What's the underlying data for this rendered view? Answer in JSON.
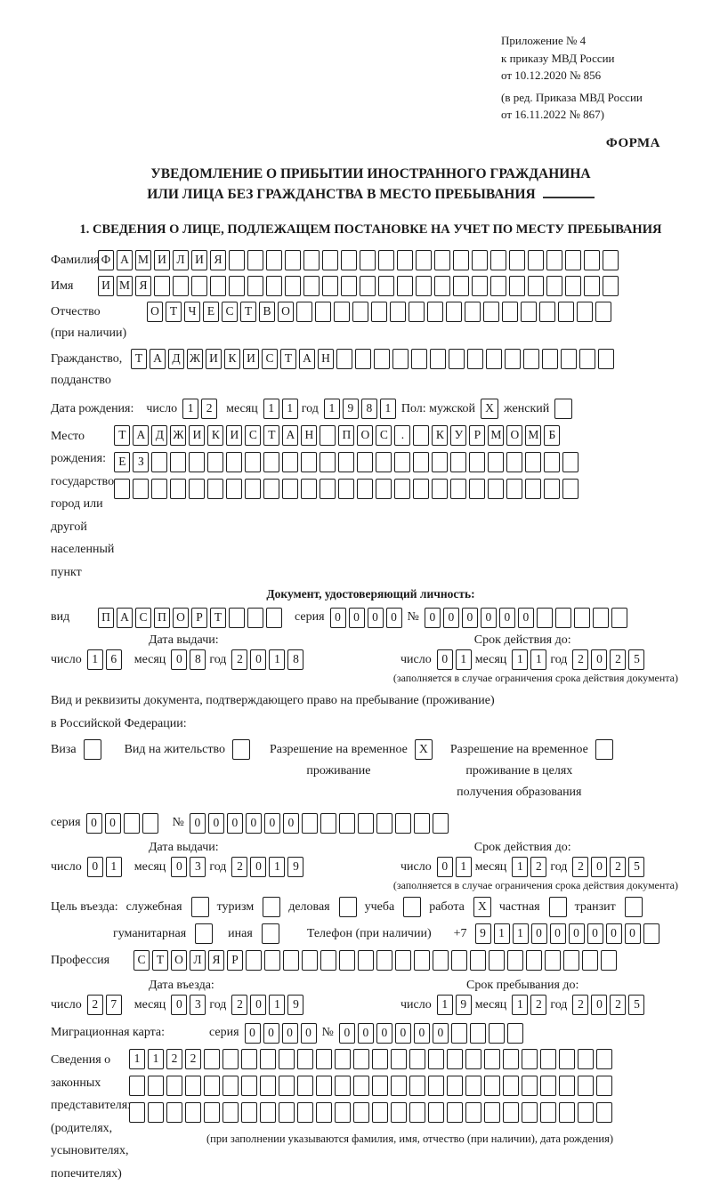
{
  "page": {
    "annex": [
      "Приложение № 4",
      "к приказу МВД России",
      "от 10.12.2020 № 856"
    ],
    "amendment": [
      "(в ред. Приказа МВД России",
      "от 16.11.2022 № 867)"
    ],
    "form_label": "ФОРМА",
    "title1": "УВЕДОМЛЕНИЕ О ПРИБЫТИИ ИНОСТРАННОГО ГРАЖДАНИНА",
    "title2": "ИЛИ ЛИЦА БЕЗ ГРАЖДАНСТВА В МЕСТО ПРЕБЫВАНИЯ",
    "section1": "1. СВЕДЕНИЯ О ЛИЦЕ, ПОДЛЕЖАЩЕМ ПОСТАНОВКЕ НА УЧЕТ ПО МЕСТУ ПРЕБЫВАНИЯ"
  },
  "surname": {
    "label": "Фамилия",
    "value": "ФАМИЛИЯ"
  },
  "firstname": {
    "label": "Имя",
    "value": "ИМЯ"
  },
  "patronymic": {
    "label": "Отчество",
    "label2": "(при наличии)",
    "value": "ОТЧЕСТВО"
  },
  "citizenship": {
    "label": "Гражданство,",
    "label2": "подданство",
    "value": "ТАДЖИКИСТАН"
  },
  "birthdate": {
    "label": "Дата рождения:",
    "day_label": "число",
    "day": "12",
    "month_label": "месяц",
    "month": "11",
    "year_label": "год",
    "year": "1981"
  },
  "gender": {
    "prefix": "Пол: мужской",
    "male": "X",
    "female_label": "женский",
    "female": ""
  },
  "birthplace": {
    "labels": [
      "Место рождения:",
      "государство",
      "город или другой",
      "населенный пункт"
    ],
    "row1": "ТАДЖИКИСТАН ПОС. КУРМОМБ",
    "row2": "ЕЗ",
    "row3": ""
  },
  "iddoc": {
    "heading": "Документ, удостоверяющий личность:",
    "kind_label": "вид",
    "kind": "ПАСПОРТ",
    "series_label": "серия",
    "series": "0000",
    "number_label": "№",
    "number": "000000"
  },
  "iddoc_issue": {
    "heading": "Дата выдачи:",
    "day_label": "число",
    "day": "16",
    "month_label": "месяц",
    "month": "08",
    "year_label": "год",
    "year": "2018"
  },
  "iddoc_expiry": {
    "heading": "Срок действия до:",
    "day_label": "число",
    "day": "01",
    "month_label": "месяц",
    "month": "11",
    "year_label": "год",
    "year": "2025",
    "note": "(заполняется в случае ограничения срока действия документа)"
  },
  "resdoc": {
    "line1": "Вид и реквизиты документа, подтверждающего право на пребывание (проживание)",
    "line2": "в Российской Федерации:",
    "visa_label": "Виза",
    "visa": "",
    "permit_label": "Вид на жительство",
    "permit": "",
    "temp_line1": "Разрешение на временное",
    "temp_line2": "проживание",
    "temp": "X",
    "edu_line1": "Разрешение на временное",
    "edu_line2": "проживание в целях",
    "edu_line3": "получения образования",
    "edu": "",
    "series_label": "серия",
    "series": "00",
    "number_label": "№",
    "number": "000000"
  },
  "resdoc_issue": {
    "heading": "Дата выдачи:",
    "day_label": "число",
    "day": "01",
    "month_label": "месяц",
    "month": "03",
    "year_label": "год",
    "year": "2019"
  },
  "resdoc_expiry": {
    "heading": "Срок действия до:",
    "day_label": "число",
    "day": "01",
    "month_label": "месяц",
    "month": "12",
    "year_label": "год",
    "year": "2025",
    "note": "(заполняется в случае ограничения срока действия документа)"
  },
  "purpose": {
    "label": "Цель въезда:",
    "opt1_label": "служебная",
    "opt1": "",
    "opt2_label": "туризм",
    "opt2": "",
    "opt3_label": "деловая",
    "opt3": "",
    "opt4_label": "учеба",
    "opt4": "",
    "opt5_label": "работа",
    "opt5": "X",
    "opt6_label": "частная",
    "opt6": "",
    "opt7_label": "транзит",
    "opt7": "",
    "opt8_label": "гуманитарная",
    "opt8": "",
    "opt9_label": "иная",
    "opt9": "",
    "phone_label": "Телефон (при наличии)",
    "phone_prefix": "+7",
    "phone": "911000000"
  },
  "profession": {
    "label": "Профессия",
    "value": "СТОЛЯР"
  },
  "entry_date": {
    "heading": "Дата въезда:",
    "day_label": "число",
    "day": "27",
    "month_label": "месяц",
    "month": "03",
    "year_label": "год",
    "year": "2019"
  },
  "stay_until": {
    "heading": "Срок пребывания до:",
    "day_label": "число",
    "day": "19",
    "month_label": "месяц",
    "month": "12",
    "year_label": "год",
    "year": "2025"
  },
  "migcard": {
    "label": "Миграционная карта:",
    "series_label": "серия",
    "series": "0000",
    "number_label": "№",
    "number": "000000"
  },
  "reps": {
    "labels": [
      "Сведения о",
      "законных",
      "представителях",
      "(родителях,",
      "усыновителях,",
      "попечителях)"
    ],
    "row1": "1122",
    "row2": "",
    "row3": "",
    "note": "(при заполнении указываются фамилия, имя, отчество (при наличии), дата рождения)"
  }
}
